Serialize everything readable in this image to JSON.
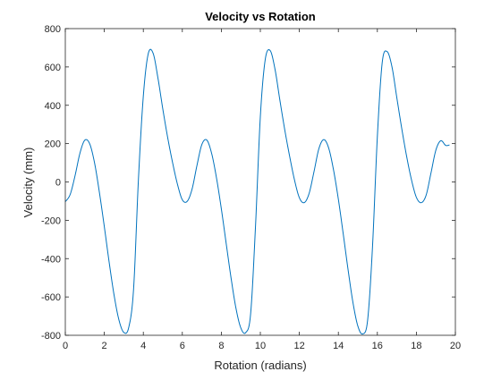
{
  "chart_data": {
    "type": "line",
    "title": "Velocity vs Rotation",
    "xlabel": "Rotation (radians)",
    "ylabel": "Velocity (mm)",
    "xlim": [
      0,
      20
    ],
    "ylim": [
      -800,
      800
    ],
    "xticks": [
      0,
      2,
      4,
      6,
      8,
      10,
      12,
      14,
      16,
      18,
      20
    ],
    "yticks": [
      -800,
      -600,
      -400,
      -200,
      0,
      200,
      400,
      600,
      800
    ],
    "grid": false,
    "legend": "none",
    "series": [
      {
        "color": "#0072BD",
        "x": [
          0,
          0.25,
          0.5,
          0.75,
          1.0,
          1.25,
          1.5,
          1.75,
          2.0,
          2.25,
          2.5,
          2.75,
          3.0,
          3.25,
          3.5,
          3.75,
          4.0,
          4.25,
          4.5,
          4.75,
          5.0,
          5.25,
          5.5,
          5.75,
          6.0,
          6.25,
          6.5,
          6.75,
          7.0,
          7.25,
          7.5,
          7.75,
          8.0,
          8.25,
          8.5,
          8.75,
          9.0,
          9.25,
          9.5,
          9.75,
          10.0,
          10.25,
          10.5,
          10.75,
          11.0,
          11.25,
          11.5,
          11.75,
          12.0,
          12.25,
          12.5,
          12.75,
          13.0,
          13.25,
          13.5,
          13.75,
          14.0,
          14.25,
          14.5,
          14.75,
          15.0,
          15.25,
          15.5,
          15.75,
          16.0,
          16.25,
          16.5,
          16.75,
          17.0,
          17.25,
          17.5,
          17.75,
          18.0,
          18.25,
          18.5,
          18.75,
          19.0,
          19.25,
          19.5,
          19.7
        ],
        "y": [
          -103,
          -65,
          33,
          150,
          218,
          199,
          99,
          -56,
          -233,
          -420,
          -590,
          -720,
          -785,
          -760,
          -560,
          15,
          448,
          668,
          672,
          542,
          380,
          231,
          101,
          -12,
          -93,
          -101,
          -37,
          86,
          195,
          219,
          150,
          22,
          -140,
          -322,
          -502,
          -659,
          -762,
          -786,
          -690,
          -236,
          341,
          638,
          686,
          589,
          428,
          273,
          135,
          11,
          -82,
          -108,
          -60,
          53,
          173,
          221,
          178,
          64,
          -90,
          -271,
          -459,
          -630,
          -752,
          -793,
          -722,
          -340,
          237,
          624,
          680,
          600,
          438,
          279,
          134,
          11,
          -80,
          -108,
          -69,
          47,
          166,
          215,
          191,
          193
        ]
      }
    ]
  }
}
